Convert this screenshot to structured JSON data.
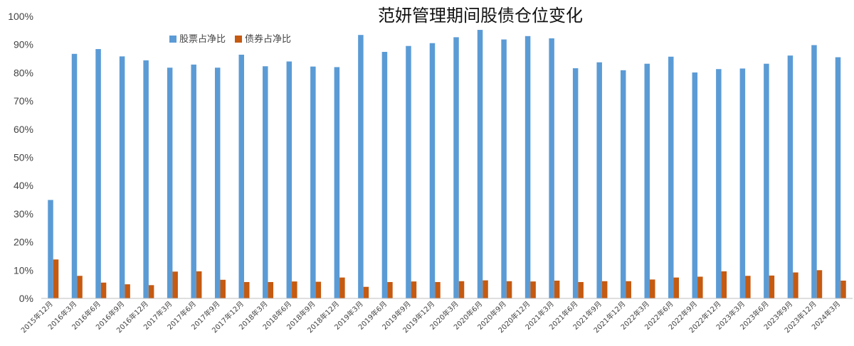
{
  "chart_data": {
    "type": "bar",
    "title": "范妍管理期间股债仓位变化",
    "xlabel": "",
    "ylabel": "",
    "ylim": [
      0,
      100
    ],
    "yticks": [
      "0%",
      "10%",
      "20%",
      "30%",
      "40%",
      "50%",
      "60%",
      "70%",
      "80%",
      "90%",
      "100%"
    ],
    "grid": false,
    "legend_position": "top-left",
    "categories": [
      "2015年12月",
      "2016年3月",
      "2016年6月",
      "2016年9月",
      "2016年12月",
      "2017年3月",
      "2017年6月",
      "2017年9月",
      "2017年12月",
      "2018年3月",
      "2018年6月",
      "2018年9月",
      "2018年12月",
      "2019年3月",
      "2019年6月",
      "2019年9月",
      "2019年12月",
      "2020年3月",
      "2020年6月",
      "2020年9月",
      "2020年12月",
      "2021年3月",
      "2021年6月",
      "2021年9月",
      "2021年12月",
      "2022年3月",
      "2022年6月",
      "2022年9月",
      "2022年12月",
      "2023年3月",
      "2023年6月",
      "2023年9月",
      "2023年12月",
      "2024年3月"
    ],
    "series": [
      {
        "name": "股票占净比",
        "color": "#5b9bd5",
        "values": [
          34.9,
          86.7,
          88.4,
          85.8,
          84.4,
          81.8,
          82.9,
          81.8,
          86.4,
          82.3,
          84.0,
          82.2,
          82.0,
          93.4,
          87.4,
          89.5,
          90.5,
          92.6,
          95.2,
          91.8,
          93.0,
          92.2,
          81.6,
          83.7,
          80.9,
          83.2,
          85.7,
          80.1,
          81.3,
          81.5,
          83.2,
          86.1,
          89.8,
          85.5
        ]
      },
      {
        "name": "债券占净比",
        "color": "#c55a11",
        "values": [
          13.8,
          8.0,
          5.6,
          5.0,
          4.7,
          9.5,
          9.6,
          6.6,
          5.8,
          5.8,
          6.0,
          5.9,
          7.4,
          4.1,
          5.8,
          6.0,
          5.8,
          6.1,
          6.4,
          6.1,
          6.0,
          6.3,
          5.8,
          6.1,
          6.1,
          6.7,
          7.4,
          7.7,
          9.6,
          8.0,
          8.1,
          9.2,
          10.0,
          6.3
        ]
      }
    ]
  }
}
